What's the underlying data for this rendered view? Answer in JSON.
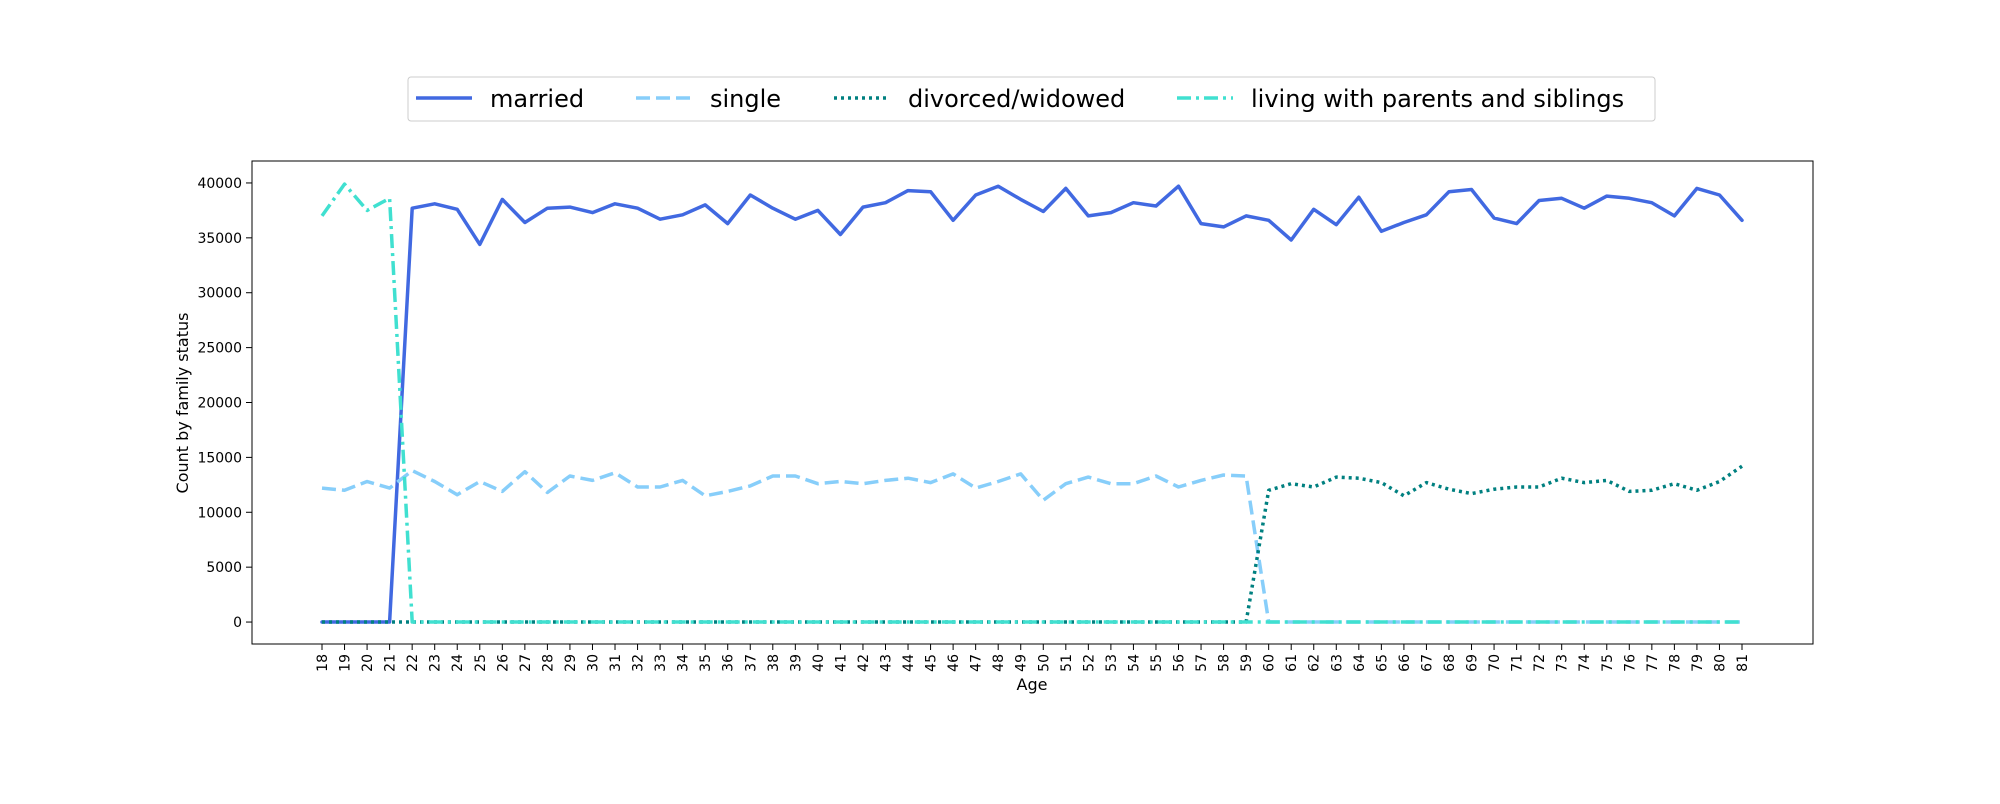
{
  "chart_data": {
    "type": "line",
    "title": "",
    "xlabel": "Age",
    "ylabel": "Count by family status",
    "ylim": [
      -2000,
      42000
    ],
    "yticks": [
      0,
      5000,
      10000,
      15000,
      20000,
      25000,
      30000,
      35000,
      40000
    ],
    "x": [
      18,
      19,
      20,
      21,
      22,
      23,
      24,
      25,
      26,
      27,
      28,
      29,
      30,
      31,
      32,
      33,
      34,
      35,
      36,
      37,
      38,
      39,
      40,
      41,
      42,
      43,
      44,
      45,
      46,
      47,
      48,
      49,
      50,
      51,
      52,
      53,
      54,
      55,
      56,
      57,
      58,
      59,
      60,
      61,
      62,
      63,
      64,
      65,
      66,
      67,
      68,
      69,
      70,
      71,
      72,
      73,
      74,
      75,
      76,
      77,
      78,
      79,
      80,
      81
    ],
    "grid": false,
    "legend_position": "top-center",
    "series": [
      {
        "name": "married",
        "color": "#4169e1",
        "style": "solid",
        "values": [
          0,
          0,
          0,
          0,
          37700,
          38100,
          37600,
          34400,
          38500,
          36400,
          37700,
          37800,
          37300,
          38100,
          37700,
          36700,
          37100,
          38000,
          36300,
          38900,
          37700,
          36700,
          37500,
          35300,
          37800,
          38200,
          39300,
          39200,
          36600,
          38900,
          39700,
          38500,
          37400,
          39500,
          37000,
          37300,
          38200,
          37900,
          39700,
          36300,
          36000,
          37000,
          36600,
          34800,
          37600,
          36200,
          38700,
          35600,
          36400,
          37100,
          39200,
          39400,
          36800,
          36300,
          38400,
          38600,
          37700,
          38800,
          38600,
          38200,
          37000,
          39500,
          38900,
          36600
        ]
      },
      {
        "name": "single",
        "color": "#87cefa",
        "style": "dashed",
        "values": [
          12200,
          12000,
          12800,
          12200,
          13800,
          12800,
          11600,
          12800,
          11900,
          13700,
          11800,
          13300,
          12900,
          13600,
          12300,
          12300,
          12900,
          11500,
          11900,
          12400,
          13300,
          13300,
          12600,
          12800,
          12600,
          12900,
          13100,
          12700,
          13500,
          12200,
          12800,
          13500,
          11100,
          12600,
          13200,
          12600,
          12600,
          13300,
          12300,
          12900,
          13400,
          13300,
          0,
          0,
          0,
          0,
          0,
          0,
          0,
          0,
          0,
          0,
          0,
          0,
          0,
          0,
          0,
          0,
          0,
          0,
          0,
          0,
          0,
          0
        ]
      },
      {
        "name": "divorced/widowed",
        "color": "#008080",
        "style": "dotted",
        "values": [
          0,
          0,
          0,
          0,
          0,
          0,
          0,
          0,
          0,
          0,
          0,
          0,
          0,
          0,
          0,
          0,
          0,
          0,
          0,
          0,
          0,
          0,
          0,
          0,
          0,
          0,
          0,
          0,
          0,
          0,
          0,
          0,
          0,
          0,
          0,
          0,
          0,
          0,
          0,
          0,
          0,
          0,
          12000,
          12600,
          12300,
          13200,
          13100,
          12700,
          11500,
          12700,
          12100,
          11700,
          12100,
          12300,
          12300,
          13100,
          12700,
          12900,
          11900,
          12000,
          12600,
          12000,
          12800,
          14200
        ]
      },
      {
        "name": "living with parents and siblings",
        "color": "#40e0d0",
        "style": "dashdot",
        "values": [
          37000,
          39900,
          37500,
          38600,
          0,
          0,
          0,
          0,
          0,
          0,
          0,
          0,
          0,
          0,
          0,
          0,
          0,
          0,
          0,
          0,
          0,
          0,
          0,
          0,
          0,
          0,
          0,
          0,
          0,
          0,
          0,
          0,
          0,
          0,
          0,
          0,
          0,
          0,
          0,
          0,
          0,
          0,
          0,
          0,
          0,
          0,
          0,
          0,
          0,
          0,
          0,
          0,
          0,
          0,
          0,
          0,
          0,
          0,
          0,
          0,
          0,
          0,
          0,
          0
        ]
      }
    ]
  }
}
